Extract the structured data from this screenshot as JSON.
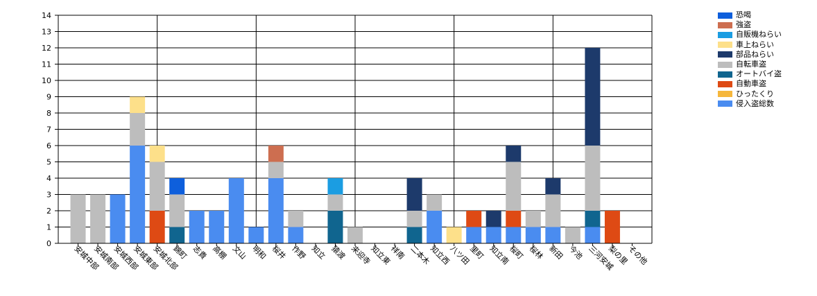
{
  "chart_data": {
    "type": "bar",
    "stacked": true,
    "ylim": [
      0,
      14
    ],
    "yticks": [
      0,
      1,
      2,
      3,
      4,
      5,
      6,
      7,
      8,
      9,
      10,
      11,
      12,
      13,
      14
    ],
    "grid": true,
    "legend_position": "top-right",
    "categories": [
      "安城中部",
      "安城南部",
      "安城西部",
      "安城東部",
      "安城北部",
      "錦町",
      "志貴",
      "高棚",
      "文山",
      "明和",
      "桜井",
      "作野",
      "知立",
      "猿渡",
      "来迎寺",
      "知立東",
      "祥南",
      "二本木",
      "知立西",
      "八ツ田",
      "里町",
      "知立南",
      "桜町",
      "桜林",
      "新田",
      "今池",
      "三河安城",
      "梨の里",
      "その他"
    ],
    "series": [
      {
        "name": "侵入盗総数",
        "color": "#4a8cf0",
        "values": [
          0,
          0,
          3,
          6,
          0,
          0,
          2,
          2,
          4,
          1,
          4,
          1,
          0,
          0,
          0,
          0,
          0,
          0,
          2,
          0,
          1,
          1,
          1,
          1,
          1,
          0,
          1,
          0,
          0
        ]
      },
      {
        "name": "ひったくり",
        "color": "#f6b73c",
        "values": [
          0,
          0,
          0,
          0,
          0,
          0,
          0,
          0,
          0,
          0,
          0,
          0,
          0,
          0,
          0,
          0,
          0,
          0,
          0,
          0,
          0,
          0,
          0,
          0,
          0,
          0,
          0,
          0,
          0
        ]
      },
      {
        "name": "自動車盗",
        "color": "#de4a14",
        "values": [
          0,
          0,
          0,
          0,
          2,
          0,
          0,
          0,
          0,
          0,
          0,
          0,
          0,
          0,
          0,
          0,
          0,
          0,
          0,
          0,
          1,
          0,
          1,
          0,
          0,
          0,
          0,
          2,
          0
        ]
      },
      {
        "name": "オートバイ盗",
        "color": "#10658f",
        "values": [
          0,
          0,
          0,
          0,
          0,
          1,
          0,
          0,
          0,
          0,
          0,
          0,
          0,
          2,
          0,
          0,
          0,
          1,
          0,
          0,
          0,
          0,
          0,
          0,
          0,
          0,
          1,
          0,
          0
        ]
      },
      {
        "name": "自転車盗",
        "color": "#bdbdbd",
        "values": [
          3,
          3,
          0,
          2,
          3,
          2,
          0,
          0,
          0,
          0,
          1,
          1,
          0,
          1,
          1,
          0,
          0,
          1,
          1,
          0,
          0,
          0,
          3,
          1,
          2,
          1,
          4,
          0,
          0
        ]
      },
      {
        "name": "部品ねらい",
        "color": "#1d3a6b",
        "values": [
          0,
          0,
          0,
          0,
          0,
          0,
          0,
          0,
          0,
          0,
          0,
          0,
          0,
          0,
          0,
          0,
          0,
          2,
          0,
          0,
          0,
          1,
          1,
          0,
          1,
          0,
          6,
          0,
          0
        ]
      },
      {
        "name": "車上ねらい",
        "color": "#fde08a",
        "values": [
          0,
          0,
          0,
          1,
          1,
          0,
          0,
          0,
          0,
          0,
          0,
          0,
          0,
          0,
          0,
          0,
          0,
          0,
          0,
          1,
          0,
          0,
          0,
          0,
          0,
          0,
          0,
          0,
          0
        ]
      },
      {
        "name": "自販機ねらい",
        "color": "#1b9de2",
        "values": [
          0,
          0,
          0,
          0,
          0,
          0,
          0,
          0,
          0,
          0,
          0,
          0,
          0,
          1,
          0,
          0,
          0,
          0,
          0,
          0,
          0,
          0,
          0,
          0,
          0,
          0,
          0,
          0,
          0
        ]
      },
      {
        "name": "強盗",
        "color": "#cd6e50",
        "values": [
          0,
          0,
          0,
          0,
          0,
          0,
          0,
          0,
          0,
          0,
          1,
          0,
          0,
          0,
          0,
          0,
          0,
          0,
          0,
          0,
          0,
          0,
          0,
          0,
          0,
          0,
          0,
          0,
          0
        ]
      },
      {
        "name": "恐喝",
        "color": "#0e5fdc",
        "values": [
          0,
          0,
          0,
          0,
          0,
          1,
          0,
          0,
          0,
          0,
          0,
          0,
          0,
          0,
          0,
          0,
          0,
          0,
          0,
          0,
          0,
          0,
          0,
          0,
          0,
          0,
          0,
          0,
          0
        ]
      }
    ],
    "legend_order": [
      "恐喝",
      "強盗",
      "自販機ねらい",
      "車上ねらい",
      "部品ねらい",
      "自転車盗",
      "オートバイ盗",
      "自動車盗",
      "ひったくり",
      "侵入盗総数"
    ]
  }
}
